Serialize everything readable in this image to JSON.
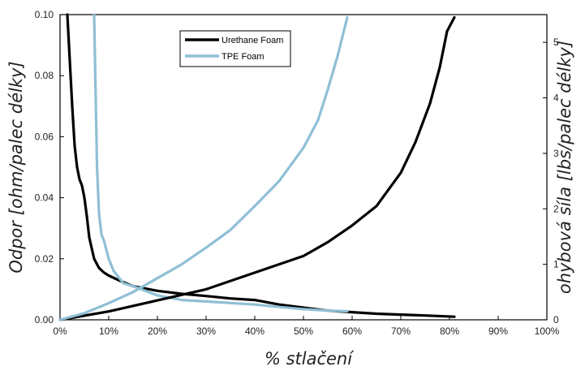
{
  "chart_data": {
    "type": "line",
    "xlabel": "% stlačení",
    "ylabel": "Odpor [ohm/palec délky]",
    "y2label": "ohybová síla [lbs/palec délky]",
    "x_ticks": [
      "0%",
      "10%",
      "20%",
      "30%",
      "40%",
      "50%",
      "60%",
      "70%",
      "80%",
      "90%",
      "100%"
    ],
    "y_ticks": [
      "0.00",
      "0.02",
      "0.04",
      "0.06",
      "0.08",
      "0.10"
    ],
    "y2_ticks": [
      "0",
      "1",
      "2",
      "3",
      "4",
      "5"
    ],
    "xlim": [
      0,
      100
    ],
    "ylim": [
      0,
      0.1
    ],
    "y2lim": [
      0,
      5.5
    ],
    "grid": false,
    "legend_position": "top-center",
    "series": [
      {
        "name": "Urethane Foam",
        "color": "#000000",
        "axis": "left",
        "x": [
          1.5,
          2,
          2.5,
          3,
          3.5,
          4,
          4.5,
          5,
          5.5,
          6,
          7,
          8,
          9,
          10,
          12,
          15,
          20,
          25,
          30,
          35,
          40,
          45,
          50,
          55,
          60,
          65,
          70,
          75,
          81
        ],
        "values": [
          0.1,
          0.085,
          0.07,
          0.057,
          0.05,
          0.046,
          0.044,
          0.04,
          0.034,
          0.027,
          0.02,
          0.017,
          0.0155,
          0.0145,
          0.013,
          0.011,
          0.0095,
          0.0085,
          0.0078,
          0.007,
          0.0065,
          0.005,
          0.004,
          0.003,
          0.0025,
          0.002,
          0.0017,
          0.0014,
          0.001
        ]
      },
      {
        "name": "TPE Foam",
        "color": "#8fbfd6",
        "axis": "left",
        "x": [
          7,
          7.3,
          7.6,
          8,
          8.5,
          9,
          9.5,
          10,
          11,
          12,
          13,
          15,
          20,
          25,
          30,
          35,
          40,
          45,
          50,
          55,
          59
        ],
        "values": [
          0.1,
          0.075,
          0.05,
          0.035,
          0.028,
          0.026,
          0.023,
          0.02,
          0.016,
          0.014,
          0.012,
          0.011,
          0.008,
          0.0065,
          0.006,
          0.0055,
          0.005,
          0.0042,
          0.0035,
          0.003,
          0.0028
        ]
      },
      {
        "name": "Urethane Foam",
        "color": "#000000",
        "axis": "right",
        "x": [
          0,
          10,
          20,
          30,
          40,
          50,
          55,
          60,
          65,
          70,
          73,
          76,
          78,
          79.5,
          81
        ],
        "values": [
          0,
          0.15,
          0.35,
          0.55,
          0.85,
          1.15,
          1.4,
          1.7,
          2.05,
          2.65,
          3.2,
          3.9,
          4.55,
          5.2,
          5.45
        ]
      },
      {
        "name": "TPE Foam",
        "color": "#8fbfd6",
        "axis": "right",
        "x": [
          0,
          5,
          10,
          15,
          20,
          25,
          30,
          35,
          40,
          45,
          50,
          53,
          55,
          57,
          59
        ],
        "values": [
          0,
          0.12,
          0.3,
          0.5,
          0.75,
          1.0,
          1.3,
          1.62,
          2.05,
          2.5,
          3.1,
          3.6,
          4.15,
          4.75,
          5.45
        ]
      }
    ]
  }
}
